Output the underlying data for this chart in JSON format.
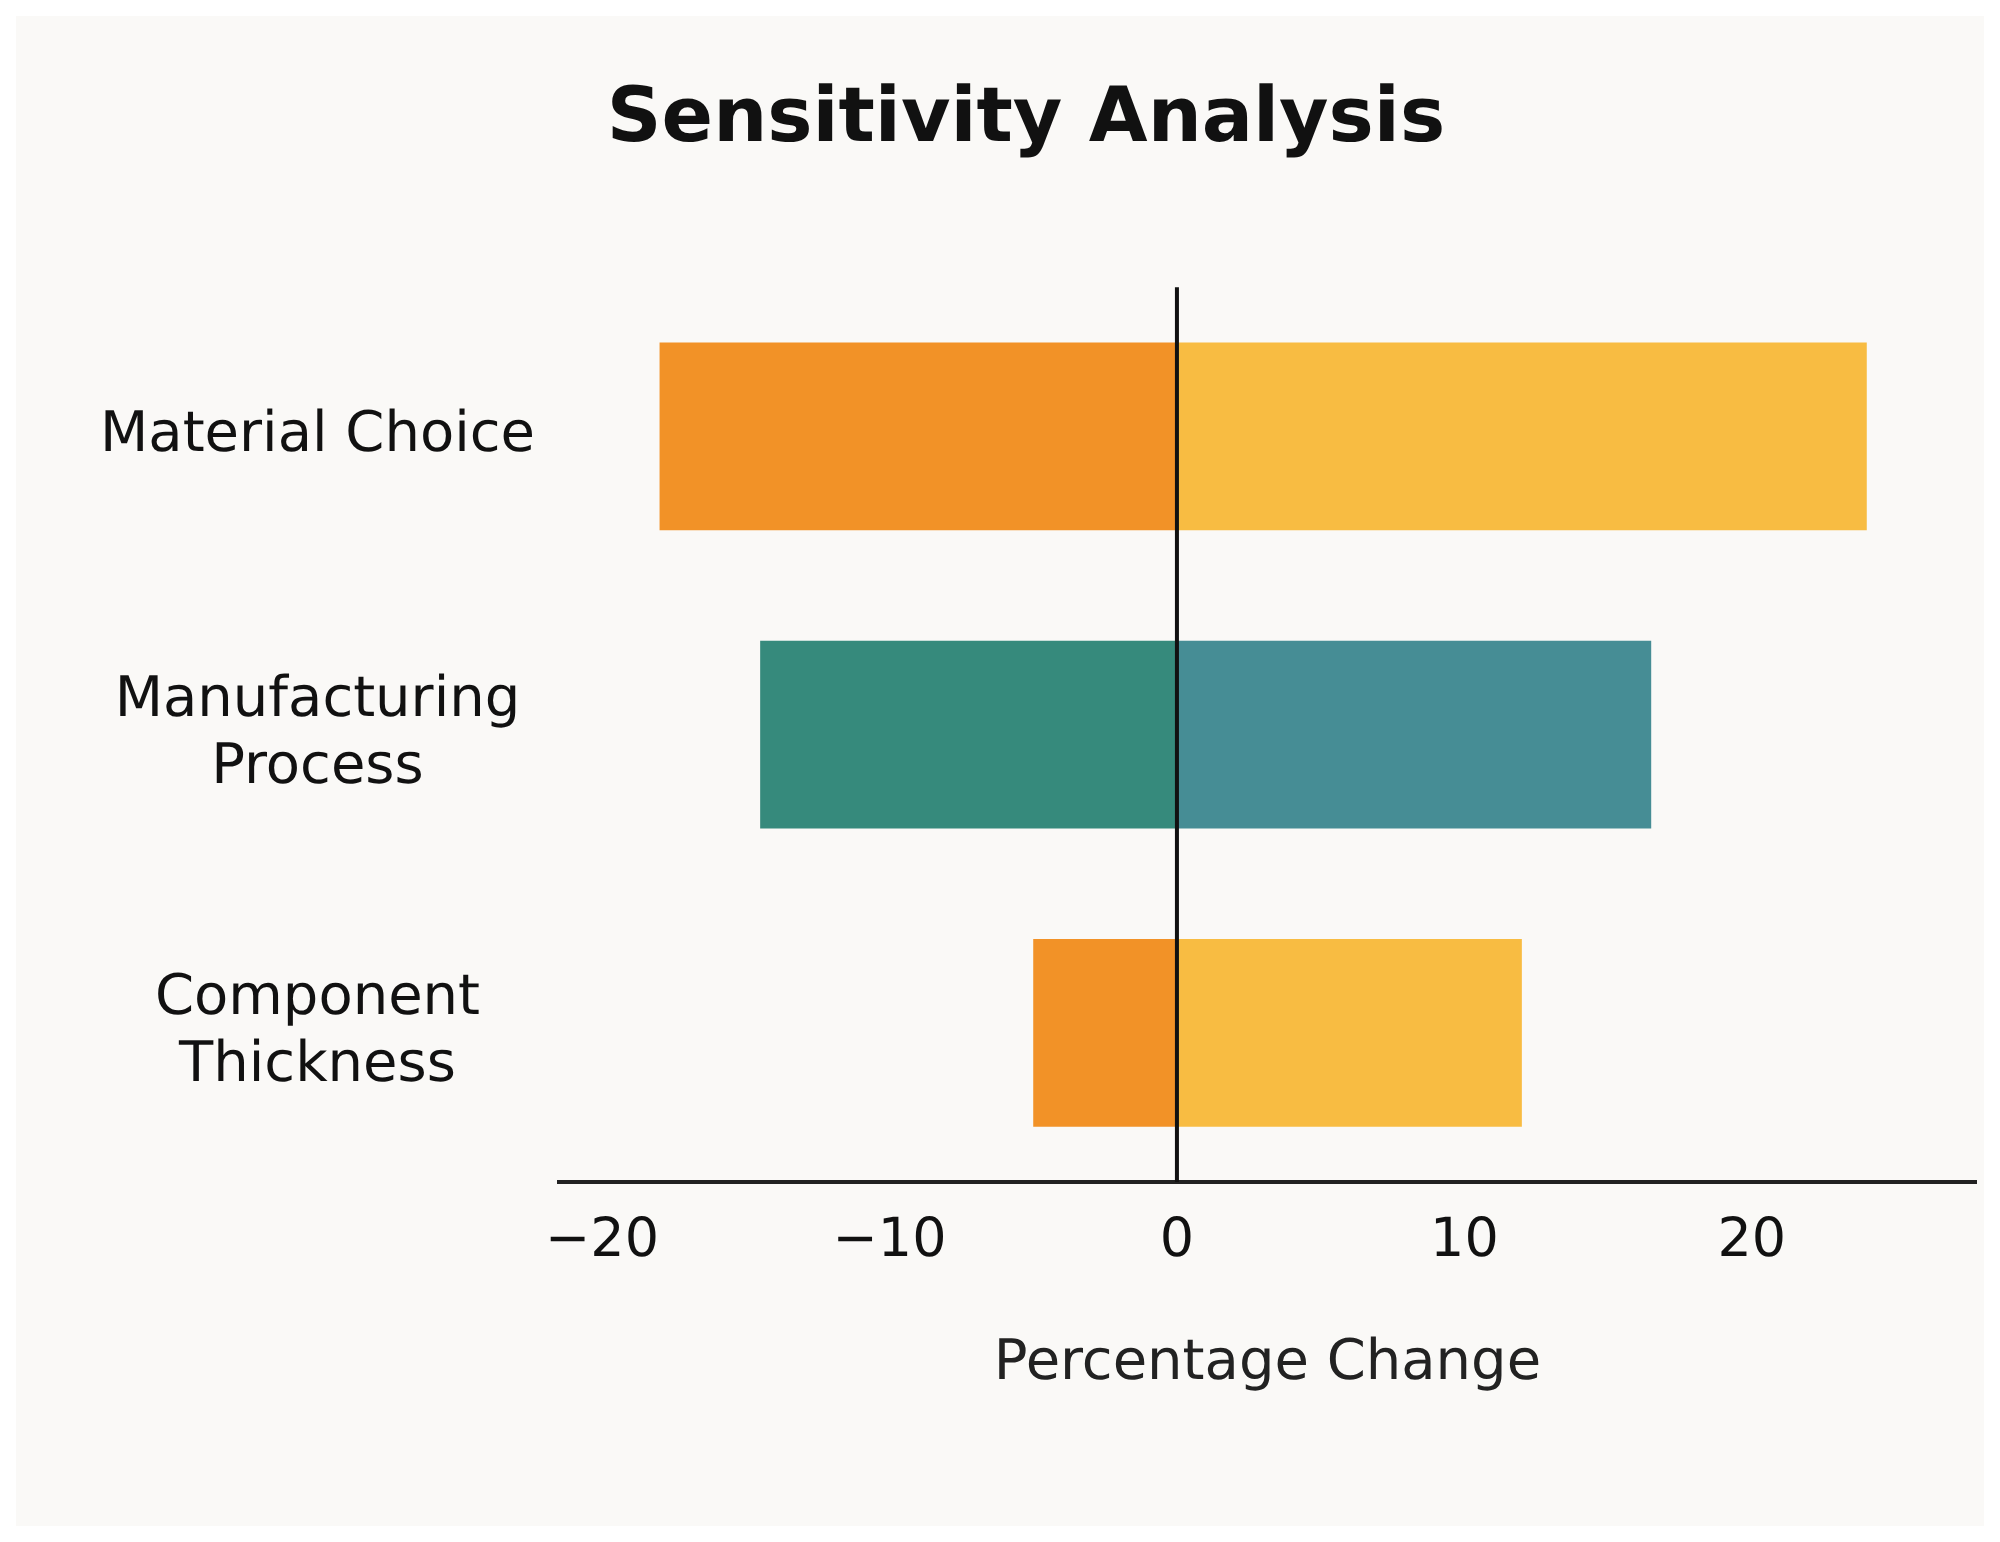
{
  "chart_data": {
    "type": "bar",
    "orientation": "horizontal",
    "stacked": true,
    "title": "Sensitivity Analysis",
    "xlabel": "Percentage Change",
    "categories": [
      "Material Choice",
      "Manufacturing Process",
      "Component Thickness"
    ],
    "series": [
      {
        "colors": [
          "#f29227",
          "#368a7c",
          "#f29227"
        ],
        "values": [
          -18,
          -14.5,
          -5
        ]
      },
      {
        "colors": [
          "#f8bc42",
          "#468d95",
          "#f8bc42"
        ],
        "values": [
          24,
          16.5,
          12
        ]
      }
    ],
    "xlim": [
      -21.5,
      27.8
    ],
    "xticks": [
      -20,
      -10,
      0,
      10,
      20
    ],
    "grid": false,
    "legend": false,
    "ref_lines": [
      {
        "axis": "x",
        "value": 0,
        "color": "#111111"
      }
    ]
  }
}
